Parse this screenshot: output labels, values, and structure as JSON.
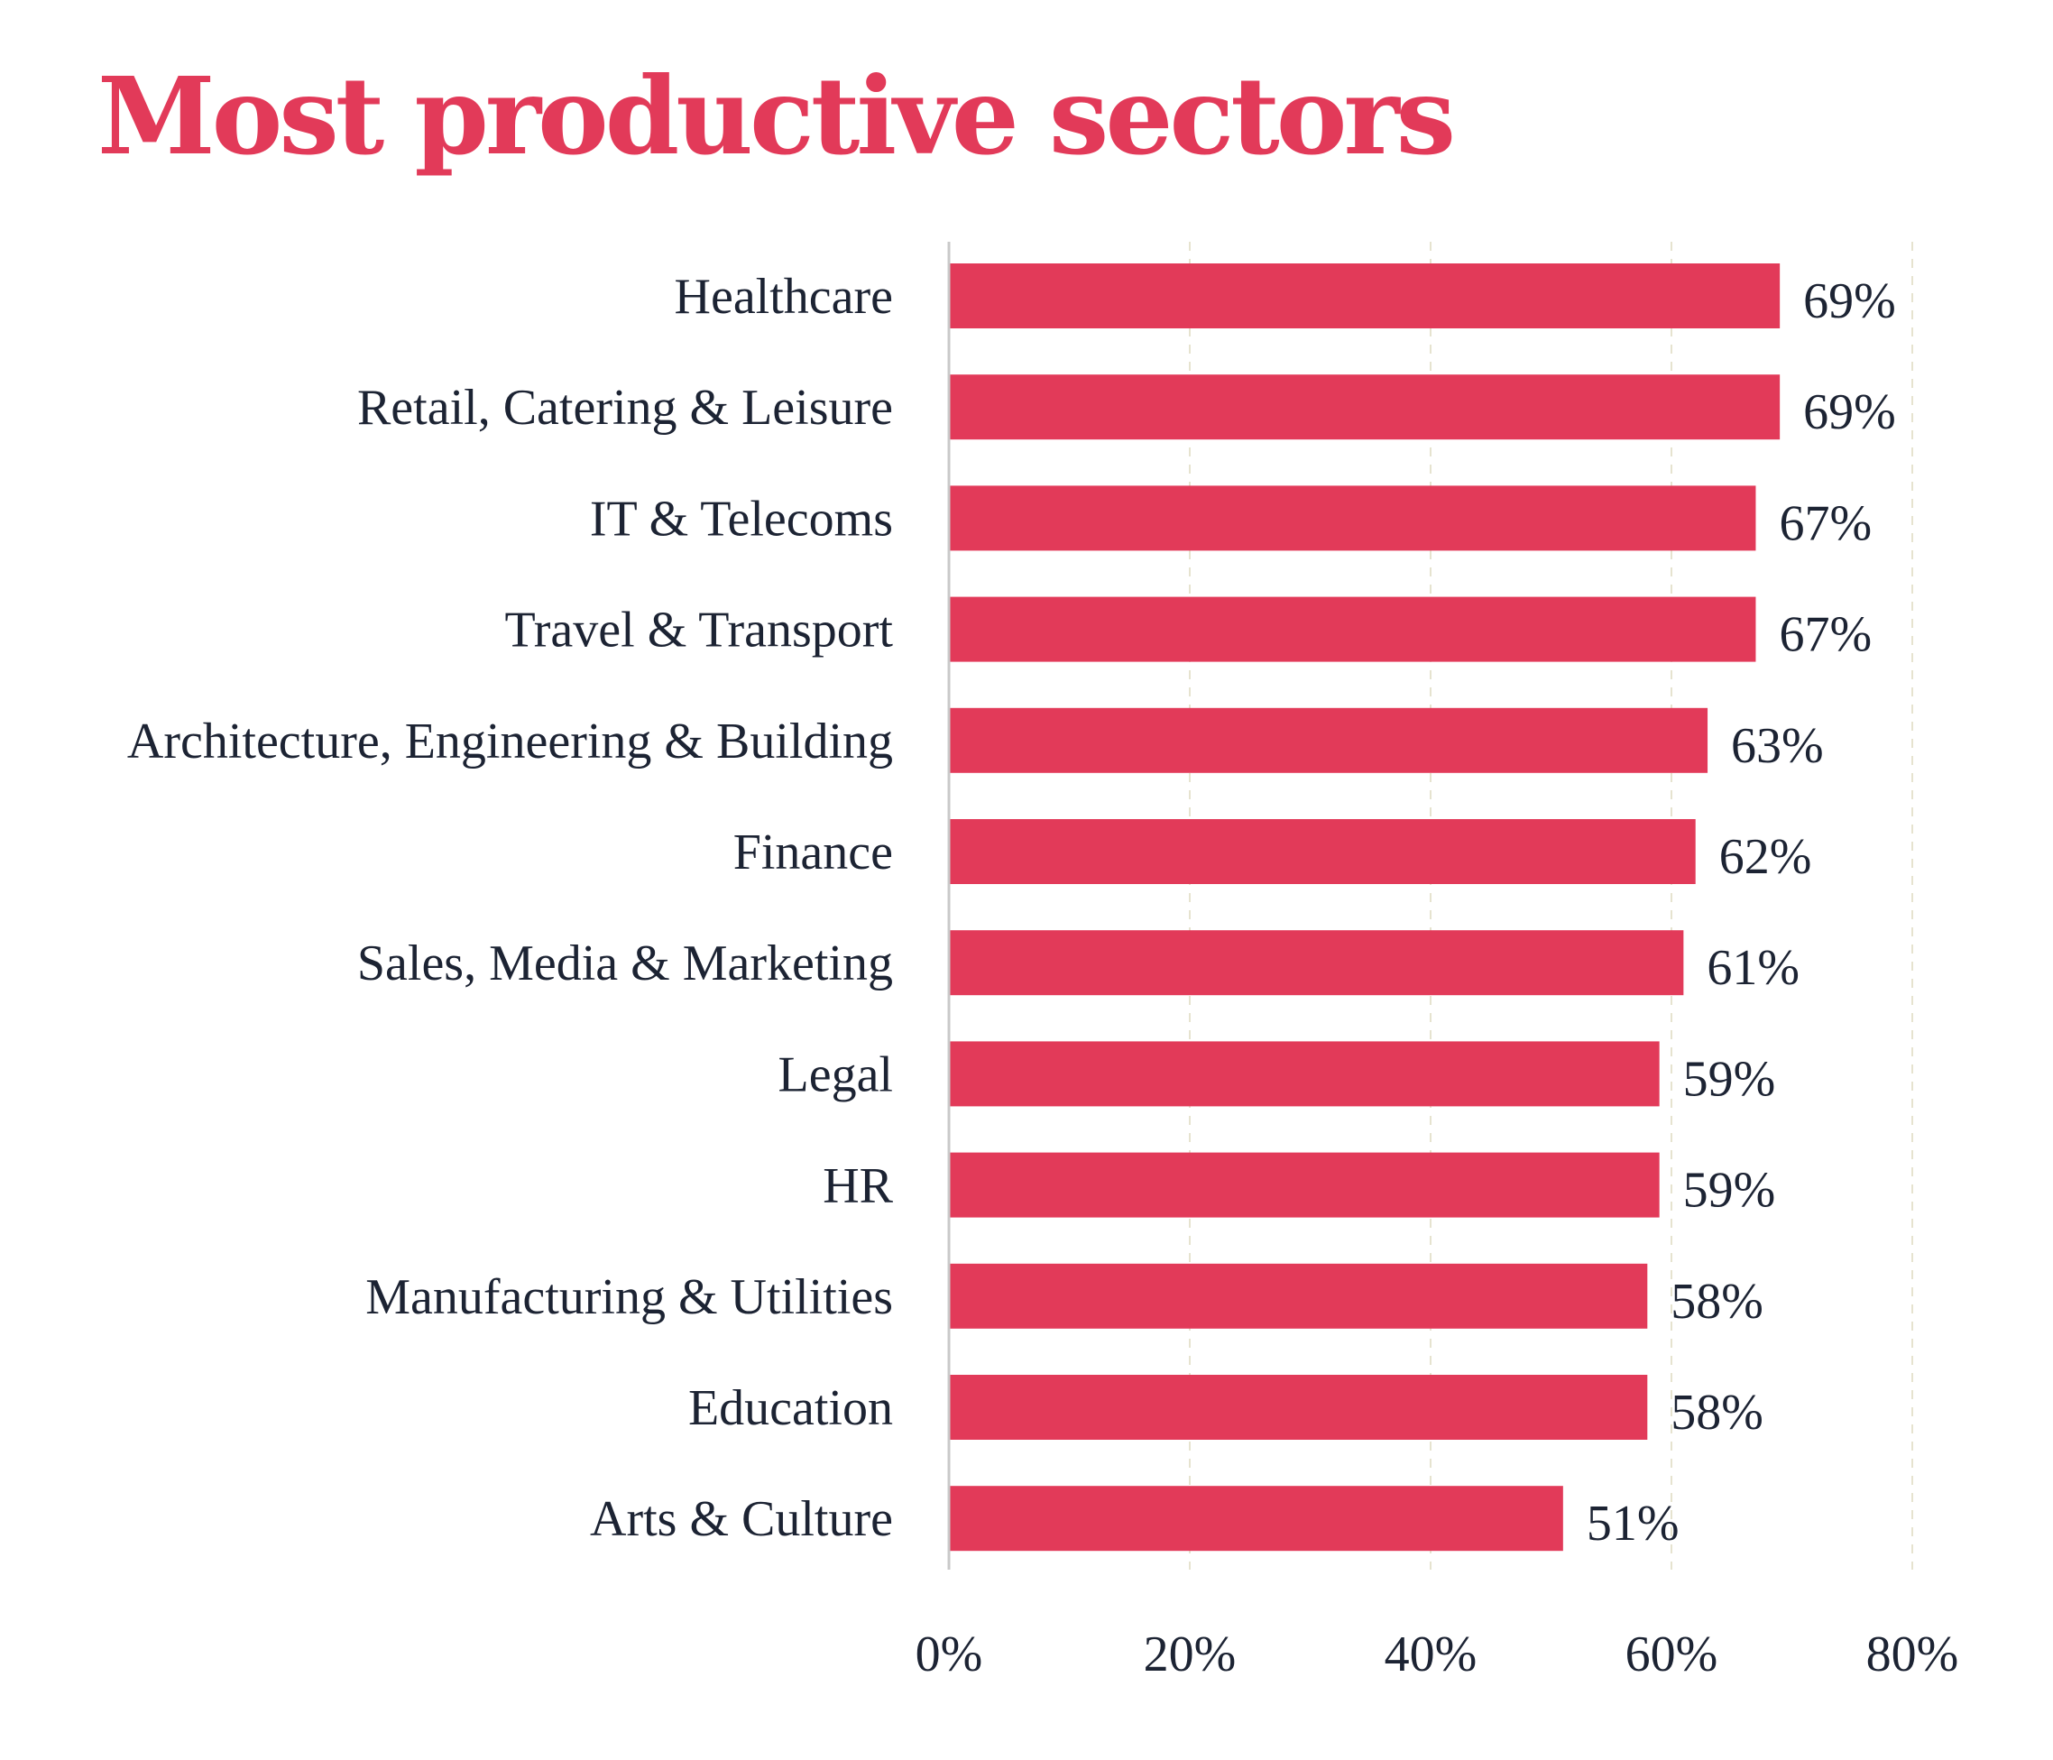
{
  "colors": {
    "bar": "#e23a59",
    "title": "#e23a59",
    "text": "#1c2333",
    "axis": "#c9c9c9",
    "grid": "#e6e3cf"
  },
  "chart_data": {
    "type": "bar",
    "orientation": "horizontal",
    "title": "Most productive sectors",
    "categories": [
      "Healthcare",
      "Retail, Catering & Leisure",
      "IT & Telecoms",
      "Travel & Transport",
      "Architecture, Engineering & Building",
      "Finance",
      "Sales, Media & Marketing",
      "Legal",
      "HR",
      "Manufacturing & Utilities",
      "Education",
      "Arts & Culture"
    ],
    "values": [
      69,
      69,
      67,
      67,
      63,
      62,
      61,
      59,
      59,
      58,
      58,
      51
    ],
    "value_labels": [
      "69%",
      "69%",
      "67%",
      "67%",
      "63%",
      "62%",
      "61%",
      "59%",
      "59%",
      "58%",
      "58%",
      "51%"
    ],
    "xlim": [
      0,
      80
    ],
    "xticks": [
      0,
      20,
      40,
      60,
      80
    ],
    "xtick_labels": [
      "0%",
      "20%",
      "40%",
      "60%",
      "80%"
    ],
    "grid": "vertical dashed",
    "legend": "none"
  }
}
